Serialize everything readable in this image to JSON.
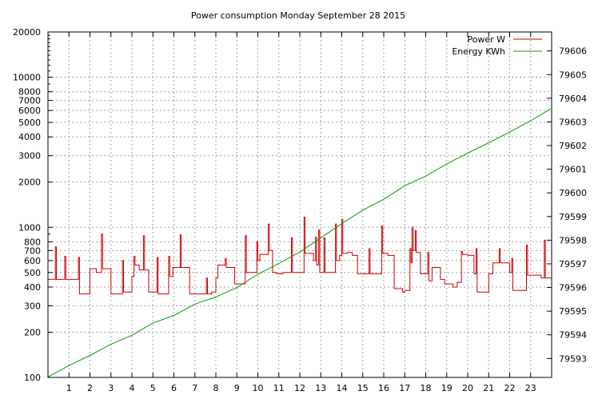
{
  "chart_data": {
    "type": "line",
    "title": "Power consumption Monday September 28 2015",
    "legend_position": "top-right",
    "grid": true,
    "x_ticks": [
      1,
      2,
      3,
      4,
      5,
      6,
      7,
      8,
      9,
      10,
      11,
      12,
      13,
      14,
      15,
      16,
      17,
      18,
      19,
      20,
      21,
      22,
      23
    ],
    "xlim": [
      0,
      24
    ],
    "y_left": {
      "scale": "log",
      "lim": [
        100,
        20000
      ],
      "ticks": [
        100,
        200,
        300,
        400,
        500,
        600,
        700,
        800,
        1000,
        2000,
        3000,
        4000,
        5000,
        6000,
        7000,
        8000,
        10000,
        20000
      ]
    },
    "y_right": {
      "scale": "linear",
      "lim": [
        79592.2,
        79606.8
      ],
      "ticks": [
        79593,
        79594,
        79595,
        79596,
        79597,
        79598,
        79599,
        79600,
        79601,
        79602,
        79603,
        79604,
        79605,
        79606
      ]
    },
    "series": [
      {
        "name": "Power W",
        "color": "#cc0000",
        "axis": "left",
        "step": true,
        "points": [
          [
            0.0,
            450
          ],
          [
            0.35,
            740
          ],
          [
            0.4,
            450
          ],
          [
            0.8,
            640
          ],
          [
            0.85,
            450
          ],
          [
            1.3,
            450
          ],
          [
            1.45,
            630
          ],
          [
            1.5,
            360
          ],
          [
            1.95,
            360
          ],
          [
            2.0,
            530
          ],
          [
            2.3,
            500
          ],
          [
            2.55,
            900
          ],
          [
            2.6,
            530
          ],
          [
            3.0,
            360
          ],
          [
            3.4,
            360
          ],
          [
            3.55,
            600
          ],
          [
            3.6,
            370
          ],
          [
            3.9,
            370
          ],
          [
            4.0,
            470
          ],
          [
            4.1,
            640
          ],
          [
            4.15,
            560
          ],
          [
            4.35,
            520
          ],
          [
            4.55,
            880
          ],
          [
            4.6,
            520
          ],
          [
            4.8,
            370
          ],
          [
            5.1,
            370
          ],
          [
            5.2,
            630
          ],
          [
            5.25,
            360
          ],
          [
            5.5,
            360
          ],
          [
            5.75,
            640
          ],
          [
            5.8,
            470
          ],
          [
            5.95,
            540
          ],
          [
            6.3,
            890
          ],
          [
            6.35,
            540
          ],
          [
            6.75,
            360
          ],
          [
            7.3,
            360
          ],
          [
            7.55,
            460
          ],
          [
            7.6,
            360
          ],
          [
            7.8,
            370
          ],
          [
            8.0,
            460
          ],
          [
            8.1,
            560
          ],
          [
            8.45,
            620
          ],
          [
            8.5,
            540
          ],
          [
            8.9,
            420
          ],
          [
            9.1,
            420
          ],
          [
            9.4,
            880
          ],
          [
            9.45,
            500
          ],
          [
            9.75,
            500
          ],
          [
            9.95,
            800
          ],
          [
            10.0,
            600
          ],
          [
            10.1,
            660
          ],
          [
            10.4,
            660
          ],
          [
            10.5,
            1050
          ],
          [
            10.55,
            700
          ],
          [
            10.7,
            500
          ],
          [
            10.9,
            490
          ],
          [
            11.2,
            500
          ],
          [
            11.6,
            850
          ],
          [
            11.65,
            500
          ],
          [
            12.0,
            500
          ],
          [
            12.2,
            1170
          ],
          [
            12.25,
            670
          ],
          [
            12.65,
            600
          ],
          [
            12.75,
            860
          ],
          [
            12.8,
            560
          ],
          [
            12.9,
            960
          ],
          [
            12.95,
            500
          ],
          [
            13.15,
            850
          ],
          [
            13.2,
            500
          ],
          [
            13.55,
            500
          ],
          [
            13.7,
            1050
          ],
          [
            13.75,
            600
          ],
          [
            13.9,
            650
          ],
          [
            14.0,
            1130
          ],
          [
            14.05,
            670
          ],
          [
            14.25,
            680
          ],
          [
            14.5,
            650
          ],
          [
            14.75,
            490
          ],
          [
            15.1,
            490
          ],
          [
            15.3,
            720
          ],
          [
            15.35,
            490
          ],
          [
            15.75,
            490
          ],
          [
            15.9,
            1020
          ],
          [
            15.95,
            670
          ],
          [
            16.2,
            650
          ],
          [
            16.5,
            390
          ],
          [
            16.9,
            370
          ],
          [
            17.0,
            380
          ],
          [
            17.25,
            720
          ],
          [
            17.3,
            580
          ],
          [
            17.35,
            1000
          ],
          [
            17.4,
            700
          ],
          [
            17.5,
            950
          ],
          [
            17.55,
            680
          ],
          [
            17.75,
            490
          ],
          [
            18.0,
            490
          ],
          [
            18.1,
            680
          ],
          [
            18.15,
            440
          ],
          [
            18.3,
            540
          ],
          [
            18.5,
            540
          ],
          [
            18.7,
            450
          ],
          [
            18.9,
            420
          ],
          [
            19.3,
            400
          ],
          [
            19.5,
            430
          ],
          [
            19.7,
            690
          ],
          [
            19.75,
            660
          ],
          [
            20.0,
            650
          ],
          [
            20.3,
            490
          ],
          [
            20.4,
            720
          ],
          [
            20.45,
            370
          ],
          [
            20.7,
            370
          ],
          [
            20.9,
            370
          ],
          [
            21.0,
            490
          ],
          [
            21.2,
            580
          ],
          [
            21.5,
            720
          ],
          [
            21.55,
            580
          ],
          [
            21.8,
            580
          ],
          [
            22.0,
            500
          ],
          [
            22.1,
            620
          ],
          [
            22.15,
            380
          ],
          [
            22.5,
            380
          ],
          [
            22.8,
            760
          ],
          [
            22.85,
            480
          ],
          [
            23.0,
            480
          ],
          [
            23.5,
            460
          ],
          [
            23.65,
            820
          ],
          [
            23.7,
            460
          ],
          [
            23.95,
            460
          ]
        ]
      },
      {
        "name": "Energy KWh",
        "color": "#00a000",
        "axis": "right",
        "step": false,
        "points": [
          [
            0.0,
            79592.22
          ],
          [
            1.0,
            79592.7
          ],
          [
            2.0,
            79593.13
          ],
          [
            3.0,
            79593.6
          ],
          [
            4.0,
            79593.98
          ],
          [
            5.0,
            79594.5
          ],
          [
            6.0,
            79594.82
          ],
          [
            7.0,
            79595.3
          ],
          [
            8.0,
            79595.6
          ],
          [
            9.0,
            79596.0
          ],
          [
            10.0,
            79596.56
          ],
          [
            11.0,
            79597.02
          ],
          [
            12.0,
            79597.5
          ],
          [
            13.0,
            79598.1
          ],
          [
            14.0,
            79598.7
          ],
          [
            15.0,
            79599.27
          ],
          [
            16.0,
            79599.73
          ],
          [
            17.0,
            79600.3
          ],
          [
            18.0,
            79600.71
          ],
          [
            19.0,
            79601.22
          ],
          [
            20.0,
            79601.68
          ],
          [
            21.0,
            79602.12
          ],
          [
            22.0,
            79602.57
          ],
          [
            23.0,
            79603.05
          ],
          [
            23.95,
            79603.55
          ]
        ]
      }
    ]
  }
}
